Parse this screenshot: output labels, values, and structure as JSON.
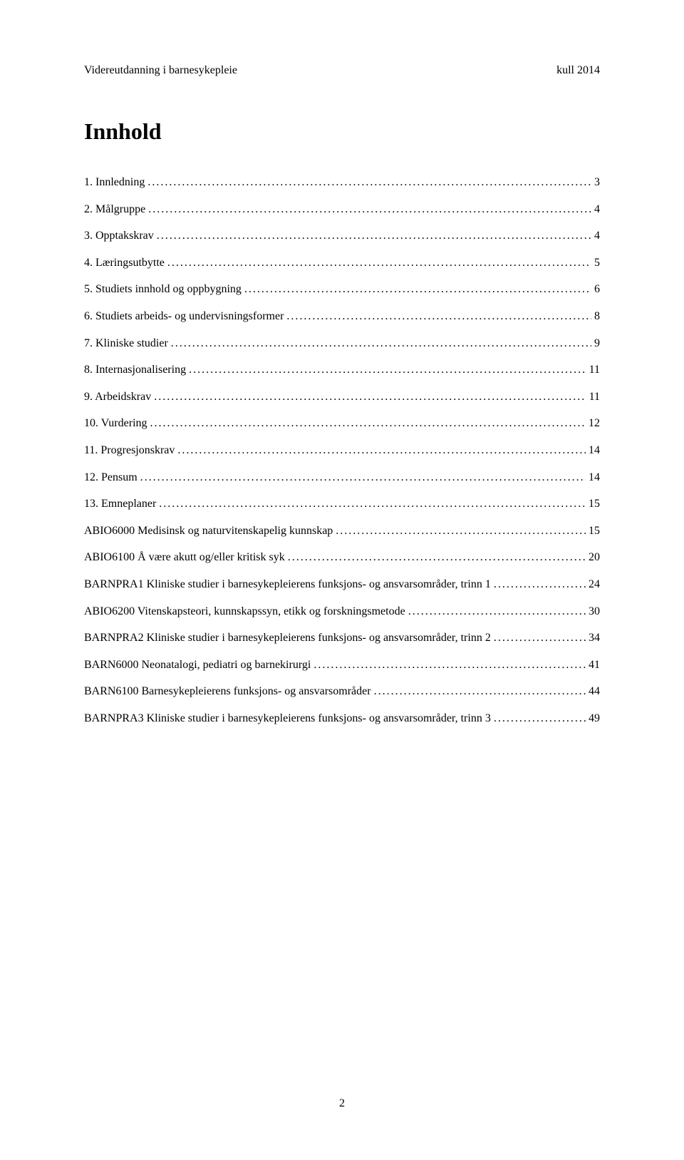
{
  "header": {
    "left": "Videreutdanning i barnesykepleie",
    "right": "kull 2014"
  },
  "title": "Innhold",
  "toc": [
    {
      "label": "1. Innledning",
      "page": "3"
    },
    {
      "label": "2. Målgruppe",
      "page": "4"
    },
    {
      "label": "3. Opptakskrav",
      "page": "4"
    },
    {
      "label": "4. Læringsutbytte",
      "page": "5"
    },
    {
      "label": "5. Studiets innhold og oppbygning",
      "page": "6"
    },
    {
      "label": "6. Studiets arbeids- og undervisningsformer",
      "page": "8"
    },
    {
      "label": "7. Kliniske studier",
      "page": "9"
    },
    {
      "label": "8. Internasjonalisering",
      "page": "11"
    },
    {
      "label": "9. Arbeidskrav",
      "page": "11"
    },
    {
      "label": "10. Vurdering",
      "page": "12"
    },
    {
      "label": "11. Progresjonskrav",
      "page": "14"
    },
    {
      "label": "12. Pensum",
      "page": "14"
    },
    {
      "label": "13. Emneplaner",
      "page": "15"
    },
    {
      "label": "ABIO6000 Medisinsk og naturvitenskapelig kunnskap",
      "page": "15"
    },
    {
      "label": "ABIO6100 Å være akutt og/eller kritisk syk",
      "page": "20"
    },
    {
      "label": "BARNPRA1 Kliniske studier i barnesykepleierens funksjons- og ansvarsområder, trinn 1",
      "page": "24"
    },
    {
      "label": "ABIO6200 Vitenskapsteori, kunnskapssyn, etikk og forskningsmetode",
      "page": "30"
    },
    {
      "label": "BARNPRA2 Kliniske studier i barnesykepleierens funksjons- og ansvarsområder, trinn 2",
      "page": "34"
    },
    {
      "label": "BARN6000 Neonatalogi, pediatri og barnekirurgi",
      "page": "41"
    },
    {
      "label": "BARN6100 Barnesykepleierens funksjons- og ansvarsområder",
      "page": "44"
    },
    {
      "label": "BARNPRA3 Kliniske studier i barnesykepleierens funksjons- og ansvarsområder, trinn 3",
      "page": "49"
    }
  ],
  "page_number": "2"
}
